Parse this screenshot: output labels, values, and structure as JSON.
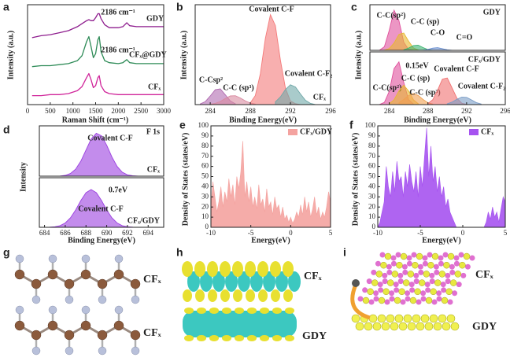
{
  "chart_data": [
    {
      "type": "line",
      "panel": "a",
      "x_label": "Raman Shift (cm⁻¹)",
      "y_label": "Intensity (a.u.)",
      "x": [
        100,
        300,
        500,
        700,
        900,
        1100,
        1200,
        1300,
        1350,
        1400,
        1450,
        1500,
        1550,
        1580,
        1620,
        1700,
        1800,
        2000,
        2100,
        2186,
        2250,
        2400,
        2600,
        2800,
        3000
      ],
      "xlim": [
        0,
        3000
      ],
      "xticks": [
        0,
        500,
        1000,
        1500,
        2000,
        2500,
        3000
      ],
      "ylim": [
        0.5,
        10.5
      ],
      "annotations": [
        "2186 cm⁻¹",
        "2186 cm⁻¹"
      ],
      "series": [
        {
          "name": "GDY",
          "color": "#8e1d8e",
          "values": [
            7.2,
            7.4,
            7.5,
            7.7,
            7.9,
            8.3,
            8.6,
            8.9,
            9.0,
            8.9,
            8.9,
            9.2,
            9.6,
            9.6,
            9.1,
            8.5,
            8.2,
            8.2,
            8.3,
            8.7,
            8.4,
            8.3,
            8.3,
            8.3,
            8.3
          ]
        },
        {
          "name": "CFₓ@GDY",
          "color": "#2e8b57",
          "values": [
            4.3,
            4.4,
            4.4,
            4.5,
            4.6,
            4.9,
            5.4,
            6.8,
            7.3,
            6.3,
            5.2,
            5.6,
            7.0,
            7.3,
            5.8,
            4.9,
            4.7,
            4.6,
            4.7,
            5.0,
            4.7,
            4.6,
            4.6,
            4.6,
            4.6
          ]
        },
        {
          "name": "CFₓ",
          "color": "#d0259a",
          "values": [
            1.4,
            1.4,
            1.5,
            1.5,
            1.6,
            1.9,
            2.3,
            3.2,
            3.6,
            3.0,
            2.2,
            2.4,
            3.2,
            3.4,
            2.4,
            1.8,
            1.6,
            1.5,
            1.5,
            1.5,
            1.5,
            1.5,
            1.5,
            1.5,
            1.5
          ]
        }
      ]
    },
    {
      "type": "area",
      "panel": "b",
      "x_label": "Binding Energy(eV)",
      "y_label": "Intensity (a.u.)",
      "sample": "CFₓ",
      "xlim": [
        282.5,
        296
      ],
      "xticks": [
        284,
        288,
        292,
        296
      ],
      "ylim": [
        0,
        11
      ],
      "series": [
        {
          "name": "C-Csp²",
          "color": "#b06ab0",
          "x": [
            283,
            283.5,
            284,
            284.5,
            285,
            285.5,
            286,
            286.5
          ],
          "values": [
            0.07,
            0.32,
            0.94,
            1.64,
            1.73,
            1.09,
            0.41,
            0.09
          ]
        },
        {
          "name": "C-C (sp³)",
          "color": "#d98aa0",
          "x": [
            284,
            284.5,
            285,
            285.5,
            286,
            286.5,
            287,
            287.5,
            288,
            288.5
          ],
          "values": [
            0.04,
            0.14,
            0.35,
            0.67,
            0.95,
            0.98,
            0.74,
            0.41,
            0.17,
            0.05
          ]
        },
        {
          "name": "Covalent C-F",
          "color": "#f47a7a",
          "x": [
            288,
            288.5,
            289,
            289.5,
            290,
            290.5,
            291,
            291.5,
            292,
            292.5,
            293
          ],
          "values": [
            0.2,
            1.0,
            3.4,
            7.3,
            9.9,
            8.7,
            4.9,
            1.8,
            0.4,
            0.1,
            0
          ]
        },
        {
          "name": "Covalent C-F₂",
          "color": "#6fa8a8",
          "x": [
            290.5,
            291,
            291.5,
            292,
            292.5,
            293,
            293.5,
            294,
            294.5
          ],
          "values": [
            0.3,
            0.85,
            1.66,
            2.18,
            1.94,
            1.17,
            0.48,
            0.13,
            0
          ]
        }
      ]
    },
    {
      "type": "area",
      "panel": "c",
      "y_label": "Intensity (a.u.)",
      "sample": "GDY",
      "xlim": [
        282,
        296
      ],
      "ylim": [
        0,
        10
      ],
      "series": [
        {
          "name": "C-C(sp²)",
          "color": "#e0509c",
          "x": [
            283,
            283.5,
            284,
            284.5,
            285,
            285.5,
            286,
            286.5
          ],
          "values": [
            0.05,
            0.8,
            4.4,
            8.8,
            6.5,
            1.8,
            0.2,
            0
          ]
        },
        {
          "name": "C-C (sp)",
          "color": "#e8b830",
          "x": [
            283.5,
            284,
            284.5,
            285,
            285.5,
            286,
            286.5,
            287
          ],
          "values": [
            0.04,
            0.4,
            1.6,
            3.5,
            3.8,
            2.0,
            0.54,
            0.07
          ]
        },
        {
          "name": "C-O",
          "color": "#3cb371",
          "x": [
            285.5,
            286,
            286.5,
            287,
            287.5,
            288,
            288.5
          ],
          "values": [
            0.1,
            0.49,
            1.06,
            1.14,
            0.61,
            0.16,
            0.02
          ]
        },
        {
          "name": "C=O",
          "color": "#6a8fd0",
          "x": [
            287.5,
            288,
            288.5,
            289,
            289.5,
            290,
            290.5
          ],
          "values": [
            0.04,
            0.2,
            0.48,
            0.59,
            0.36,
            0.12,
            0.02
          ]
        }
      ]
    },
    {
      "type": "area",
      "x_label": "Binding Energy(eV)",
      "sample": "CFₓ/GDY",
      "annotations": [
        "0.15eV"
      ],
      "xlim": [
        282,
        296
      ],
      "xticks": [
        284,
        288,
        292,
        296
      ],
      "ylim": [
        0,
        9.5
      ],
      "series": [
        {
          "name": "C-C(sp²)",
          "color": "#e0509c",
          "x": [
            283,
            283.5,
            284,
            284.5,
            285,
            285.5,
            286,
            286.5
          ],
          "values": [
            0.03,
            0.4,
            2.4,
            6.5,
            7.7,
            4.0,
            0.9,
            0.1
          ]
        },
        {
          "name": "C-C (sp)",
          "color": "#e8b830",
          "x": [
            284,
            284.5,
            285,
            285.5,
            286,
            286.5,
            287
          ],
          "values": [
            0.15,
            0.87,
            2.47,
            3.5,
            2.47,
            0.87,
            0.15
          ]
        },
        {
          "name": "C-C (sp³)",
          "color": "#f0a050",
          "x": [
            285,
            285.5,
            286,
            286.5,
            287,
            287.5,
            288,
            288.5
          ],
          "values": [
            0.34,
            0.92,
            1.64,
            2.0,
            1.64,
            0.92,
            0.34,
            0.09
          ]
        },
        {
          "name": "Covalent C-F",
          "color": "#f07070",
          "x": [
            288,
            288.5,
            289,
            289.5,
            290,
            290.5,
            291,
            291.5,
            292
          ],
          "values": [
            0.18,
            0.9,
            2.6,
            4.6,
            4.8,
            3.0,
            1.15,
            0.26,
            0.04
          ]
        },
        {
          "name": "Covalent C-F₂",
          "color": "#7a9cc6",
          "x": [
            290,
            290.5,
            291,
            291.5,
            292,
            292.5,
            293,
            293.5
          ],
          "values": [
            0.15,
            0.45,
            0.96,
            1.36,
            1.3,
            0.85,
            0.37,
            0.11
          ]
        }
      ]
    },
    {
      "type": "area",
      "panel": "d",
      "y_label": "Intensity",
      "tag": "F 1s",
      "sample": "CFₓ",
      "xlim": [
        683.5,
        695.5
      ],
      "ylim": [
        0,
        10.5
      ],
      "series": [
        {
          "name": "Covalent C-F",
          "color": "#9b40e0",
          "x": [
            685,
            685.5,
            686,
            686.5,
            687,
            687.5,
            688,
            688.5,
            689,
            689.5,
            690,
            690.5,
            691,
            691.5,
            692,
            692.5,
            693
          ],
          "values": [
            0.01,
            0.04,
            0.17,
            0.55,
            1.46,
            3.13,
            5.46,
            7.75,
            8.96,
            8.42,
            6.44,
            4.0,
            2.03,
            0.83,
            0.28,
            0.08,
            0.02
          ]
        }
      ]
    },
    {
      "type": "area",
      "x_label": "Binding Energy(eV)",
      "sample": "CFₓ/GDY",
      "annotations": [
        "0.7eV"
      ],
      "xlim": [
        683.5,
        695.5
      ],
      "xticks": [
        684,
        686,
        688,
        690,
        692,
        694
      ],
      "ylim": [
        0,
        10.5
      ],
      "series": [
        {
          "name": "Covalent C-F",
          "color": "#9b40e0",
          "x": [
            684.5,
            685,
            685.5,
            686,
            686.5,
            687,
            687.5,
            688,
            688.5,
            689,
            689.5,
            690,
            690.5,
            691,
            691.5,
            692,
            692.5
          ],
          "values": [
            0.03,
            0.11,
            0.35,
            0.91,
            2.0,
            3.66,
            5.66,
            7.33,
            8.0,
            7.33,
            5.66,
            3.66,
            2.0,
            0.91,
            0.35,
            0.11,
            0.03
          ]
        }
      ]
    },
    {
      "type": "area",
      "panel": "e",
      "x_label": "Energy(eV)",
      "y_label": "Density of States (states/eV)",
      "legend": "upper right",
      "x": [
        -10,
        -9.75,
        -9.5,
        -9.25,
        -9,
        -8.75,
        -8.5,
        -8.25,
        -8,
        -7.75,
        -7.5,
        -7.25,
        -7,
        -6.75,
        -6.5,
        -6.25,
        -6,
        -5.75,
        -5.5,
        -5.25,
        -5,
        -4.75,
        -4.5,
        -4.25,
        -4,
        -3.75,
        -3.5,
        -3.25,
        -3,
        -2.75,
        -2.5,
        -2.25,
        -2,
        -1.75,
        -1.5,
        -1.25,
        -1,
        -0.75,
        -0.5,
        -0.25,
        0,
        0.25,
        0.5,
        0.75,
        1,
        1.25,
        1.5,
        1.75,
        2,
        2.25,
        2.5,
        2.75,
        3,
        3.25,
        3.5,
        3.75,
        4,
        4.25,
        4.5,
        4.75,
        5
      ],
      "xlim": [
        -10,
        5
      ],
      "xticks": [
        -10,
        -5,
        0,
        5
      ],
      "ylim": [
        0,
        100
      ],
      "yticks": [
        0,
        10,
        20,
        30,
        40,
        50,
        60,
        70,
        80,
        90,
        100
      ],
      "series": [
        {
          "name": "CFₓ/GDY",
          "color": "#f4a3a0",
          "values": [
            20,
            45,
            30,
            15,
            25,
            40,
            20,
            35,
            25,
            48,
            30,
            42,
            22,
            50,
            38,
            55,
            85,
            30,
            45,
            25,
            40,
            20,
            30,
            18,
            42,
            22,
            28,
            15,
            38,
            20,
            25,
            12,
            30,
            18,
            22,
            10,
            20,
            8,
            12,
            5,
            10,
            4,
            8,
            15,
            10,
            22,
            12,
            30,
            15,
            25,
            10,
            18,
            30,
            12,
            20,
            8,
            15,
            10,
            20,
            35,
            25
          ]
        }
      ]
    },
    {
      "type": "area",
      "panel": "f",
      "x_label": "Energy(eV)",
      "y_label": "Density of States (states/eV)",
      "legend": "upper right",
      "x": [
        -10,
        -9.75,
        -9.5,
        -9.25,
        -9,
        -8.75,
        -8.5,
        -8.25,
        -8,
        -7.75,
        -7.5,
        -7.25,
        -7,
        -6.75,
        -6.5,
        -6.25,
        -6,
        -5.75,
        -5.5,
        -5.25,
        -5,
        -4.75,
        -4.5,
        -4.25,
        -4,
        -3.75,
        -3.5,
        -3.25,
        -3,
        -2.75,
        -2.5,
        -2.25,
        -2,
        -1.75,
        -1.5,
        -1.25,
        -1,
        -0.75,
        -0.5,
        -0.25,
        0,
        0.25,
        0.5,
        0.75,
        1,
        1.25,
        1.5,
        1.75,
        2,
        2.25,
        2.5,
        2.75,
        3,
        3.25,
        3.5,
        3.75,
        4,
        4.25,
        4.5,
        4.75,
        5
      ],
      "xlim": [
        -10,
        5
      ],
      "xticks": [
        -10,
        -5,
        0,
        5
      ],
      "ylim": [
        0,
        100
      ],
      "yticks": [
        0,
        10,
        20,
        30,
        40,
        50,
        60,
        70,
        80,
        90,
        100
      ],
      "series": [
        {
          "name": "CFₓ",
          "color": "#a653f0",
          "values": [
            0,
            5,
            15,
            25,
            60,
            40,
            30,
            55,
            35,
            65,
            45,
            50,
            30,
            55,
            40,
            62,
            45,
            35,
            55,
            30,
            60,
            40,
            70,
            98,
            50,
            80,
            45,
            60,
            35,
            50,
            30,
            40,
            20,
            28,
            15,
            10,
            5,
            0,
            0,
            0,
            0,
            0,
            0,
            0,
            0,
            0,
            0,
            0,
            0,
            0,
            0,
            5,
            15,
            8,
            20,
            10,
            15,
            5,
            18,
            30,
            25
          ]
        }
      ]
    }
  ],
  "structures": [
    {
      "panel": "g",
      "labels": [
        "CFₓ",
        "CFₓ"
      ]
    },
    {
      "panel": "h",
      "labels": [
        "CFₓ",
        "GDY"
      ]
    },
    {
      "panel": "i",
      "labels": [
        "CFₓ",
        "GDY"
      ]
    }
  ]
}
